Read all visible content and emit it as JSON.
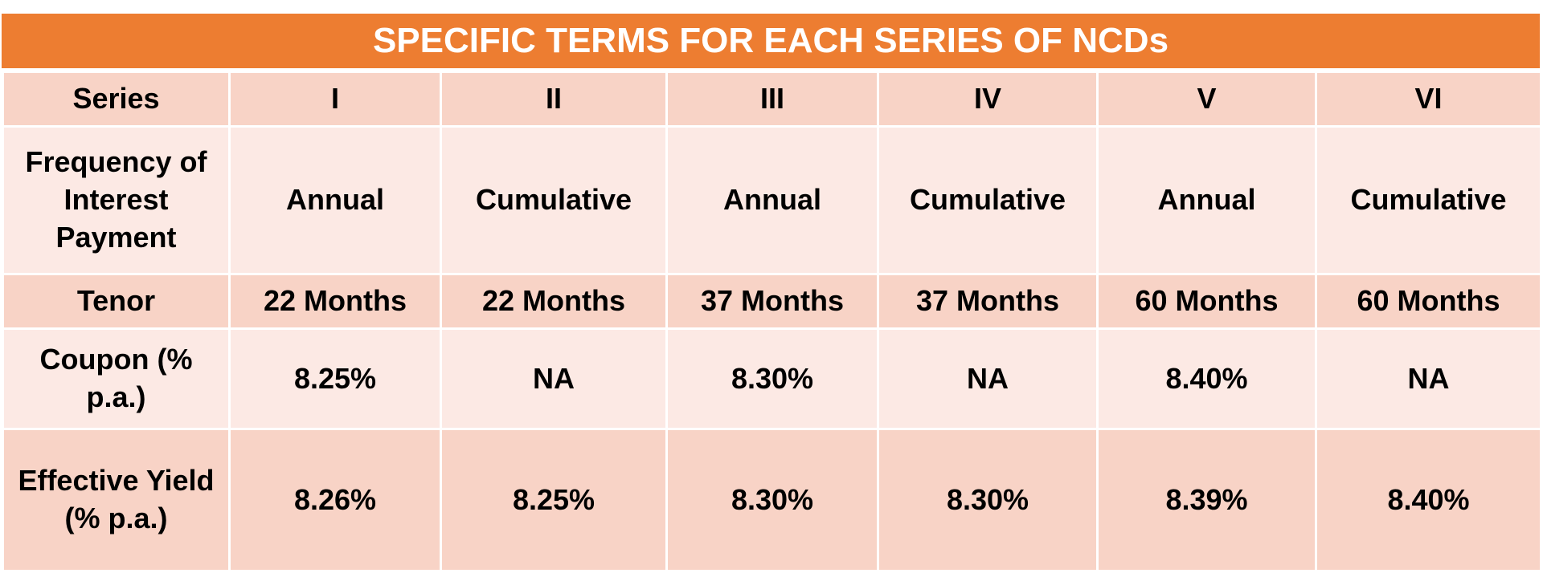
{
  "title": "SPECIFIC TERMS FOR EACH SERIES OF NCDs",
  "table": {
    "header": [
      "Series",
      "I",
      "II",
      "III",
      "IV",
      "V",
      "VI"
    ],
    "rows": [
      [
        "Frequency of Interest Payment",
        "Annual",
        "Cumulative",
        "Annual",
        "Cumulative",
        "Annual",
        "Cumulative"
      ],
      [
        "Tenor",
        "22 Months",
        "22 Months",
        "37 Months",
        "37 Months",
        "60 Months",
        "60 Months"
      ],
      [
        "Coupon (% p.a.)",
        "8.25%",
        "NA",
        "8.30%",
        "NA",
        "8.40%",
        "NA"
      ],
      [
        "Effective Yield (% p.a.)",
        "8.26%",
        "8.25%",
        "8.30%",
        "8.30%",
        "8.39%",
        "8.40%"
      ]
    ]
  }
}
